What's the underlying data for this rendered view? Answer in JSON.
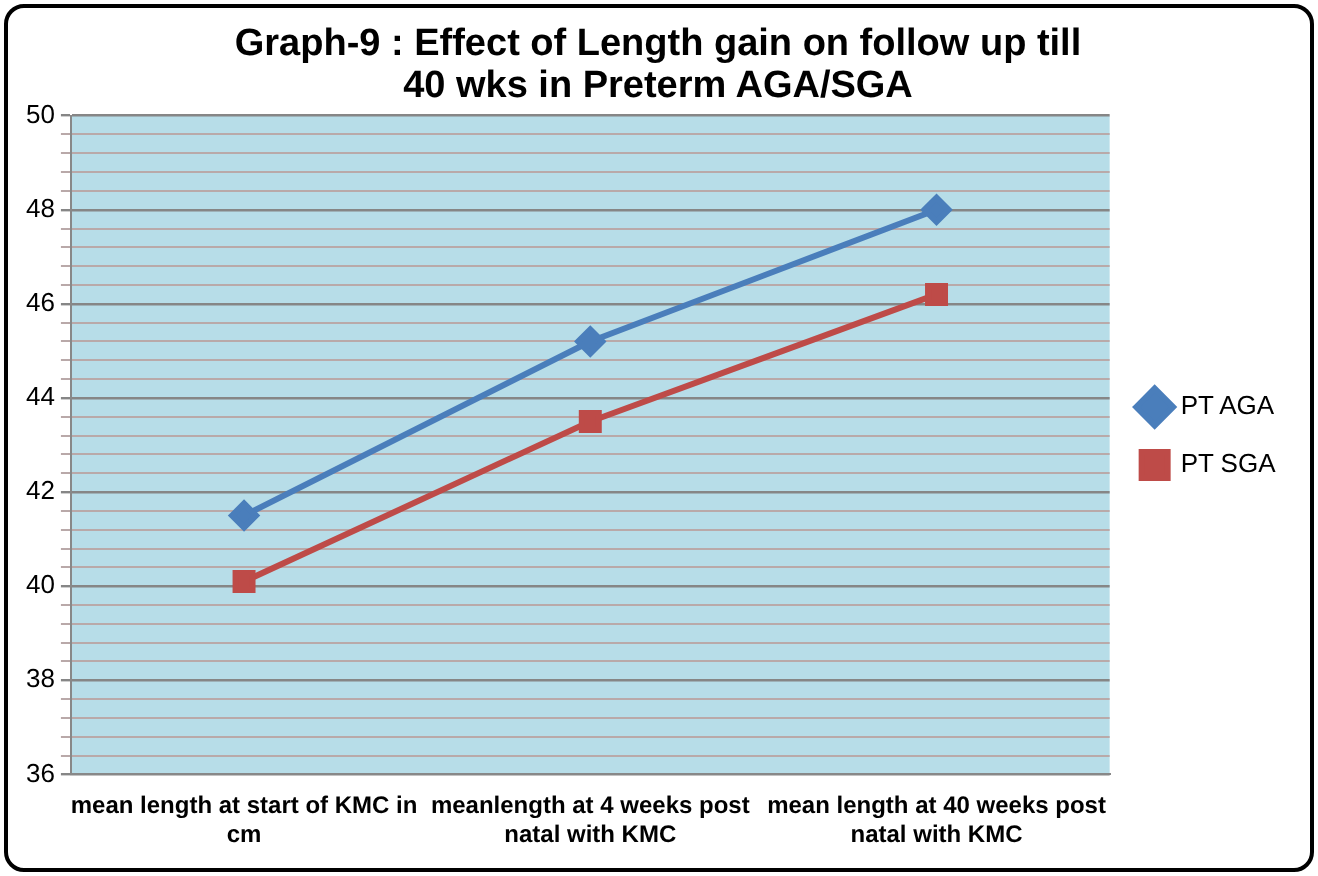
{
  "chart_data": {
    "type": "line",
    "title": "Graph-9 : Effect of Length gain on follow up till 40 wks in Preterm AGA/SGA",
    "categories": [
      "mean length at start of KMC in cm",
      "meanlength at 4 weeks post natal with KMC",
      "mean length at 40 weeks post natal with KMC"
    ],
    "series": [
      {
        "name": "PT AGA",
        "color": "#4a7ebb",
        "marker": "diamond",
        "values": [
          41.5,
          45.2,
          48.0
        ]
      },
      {
        "name": "PT SGA",
        "color": "#be4b48",
        "marker": "square",
        "values": [
          40.1,
          43.5,
          46.2
        ]
      }
    ],
    "ylim": [
      36,
      50
    ],
    "yticks": [
      36,
      38,
      40,
      42,
      44,
      46,
      48,
      50
    ],
    "grid": "y",
    "legend": "right",
    "line_style": "solid"
  }
}
